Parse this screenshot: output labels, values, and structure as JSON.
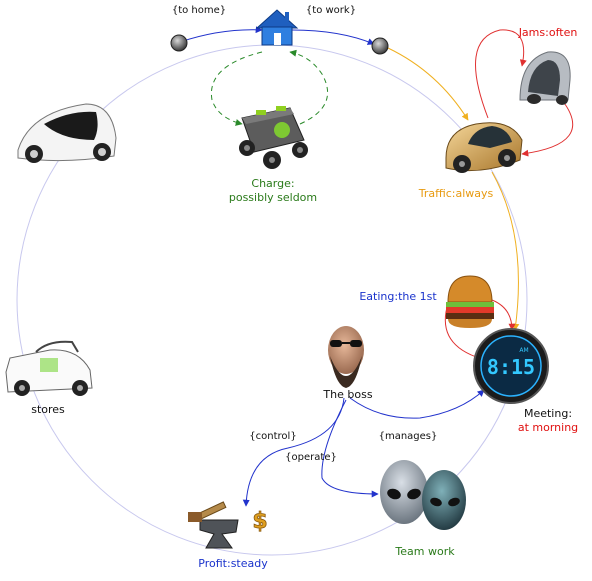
{
  "colors": {
    "circle": "#c8c8ee",
    "blue_arrow": "#2233cc",
    "orange_arrow": "#f0b020",
    "red_arrow": "#e03030",
    "green_dashed": "#2a8a2a",
    "label_blue": "#1a33cc",
    "label_red": "#e01010",
    "label_orange": "#e89a10",
    "label_green": "#2a7a1a",
    "label_dark": "#111111"
  },
  "edges": {
    "to_home": "{to home}",
    "to_work": "{to work}",
    "control": "{control}",
    "manages": "{manages}",
    "operate": "{operate}"
  },
  "nodes": {
    "jams": {
      "name": "Jams",
      "value": "often"
    },
    "charge": {
      "name": "Charge:",
      "value": "possibly seldom"
    },
    "traffic": {
      "name": "Traffic",
      "value": "always"
    },
    "eating": {
      "name": "Eating",
      "value": "the 1st"
    },
    "boss": {
      "name": "The boss"
    },
    "meeting": {
      "name": "Meeting:",
      "value": "at morning"
    },
    "stores": {
      "name": "stores"
    },
    "profit": {
      "name": "Profit",
      "value": "steady"
    },
    "team": {
      "name": "Team work"
    }
  },
  "clock": {
    "time": "8:15",
    "pm_indicator": "AM"
  },
  "icons": {
    "home": "house-icon",
    "battery": "battery-robot-icon",
    "car_top_right": "grey-pod-car-icon",
    "car_traffic": "gold-smart-car-icon",
    "car_left": "white-concept-car-icon",
    "car_stores": "white-buggy-car-icon",
    "burger": "burger-icon",
    "clock": "digital-clock-icon",
    "boss": "bearded-man-icon",
    "aliens": "aliens-icon",
    "anvil": "anvil-dollar-icon"
  }
}
